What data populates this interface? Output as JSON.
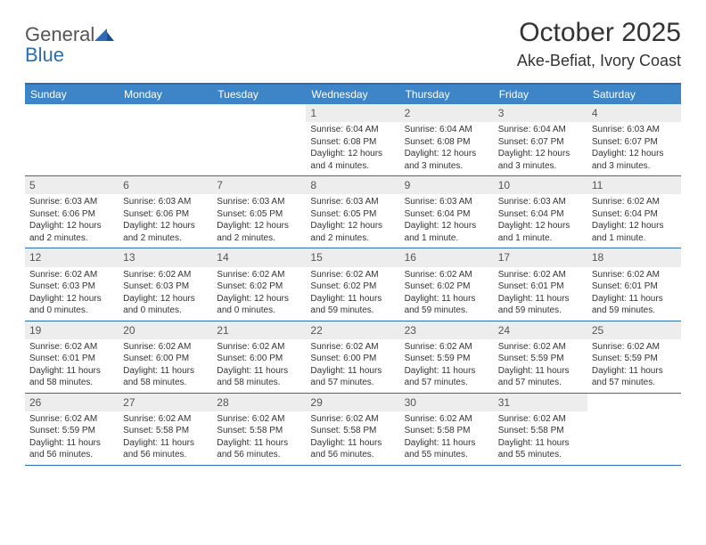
{
  "brand": {
    "word1": "General",
    "word2": "Blue"
  },
  "title": "October 2025",
  "location": "Ake-Befiat, Ivory Coast",
  "colors": {
    "header_bar": "#3d85c6",
    "rule": "#2a6db5",
    "daynum_bg": "#ededed",
    "text": "#333333",
    "background": "#ffffff"
  },
  "weekdays": [
    "Sunday",
    "Monday",
    "Tuesday",
    "Wednesday",
    "Thursday",
    "Friday",
    "Saturday"
  ],
  "weeks": [
    [
      null,
      null,
      null,
      {
        "n": "1",
        "sr": "Sunrise: 6:04 AM",
        "ss": "Sunset: 6:08 PM",
        "dl": "Daylight: 12 hours and 4 minutes."
      },
      {
        "n": "2",
        "sr": "Sunrise: 6:04 AM",
        "ss": "Sunset: 6:08 PM",
        "dl": "Daylight: 12 hours and 3 minutes."
      },
      {
        "n": "3",
        "sr": "Sunrise: 6:04 AM",
        "ss": "Sunset: 6:07 PM",
        "dl": "Daylight: 12 hours and 3 minutes."
      },
      {
        "n": "4",
        "sr": "Sunrise: 6:03 AM",
        "ss": "Sunset: 6:07 PM",
        "dl": "Daylight: 12 hours and 3 minutes."
      }
    ],
    [
      {
        "n": "5",
        "sr": "Sunrise: 6:03 AM",
        "ss": "Sunset: 6:06 PM",
        "dl": "Daylight: 12 hours and 2 minutes."
      },
      {
        "n": "6",
        "sr": "Sunrise: 6:03 AM",
        "ss": "Sunset: 6:06 PM",
        "dl": "Daylight: 12 hours and 2 minutes."
      },
      {
        "n": "7",
        "sr": "Sunrise: 6:03 AM",
        "ss": "Sunset: 6:05 PM",
        "dl": "Daylight: 12 hours and 2 minutes."
      },
      {
        "n": "8",
        "sr": "Sunrise: 6:03 AM",
        "ss": "Sunset: 6:05 PM",
        "dl": "Daylight: 12 hours and 2 minutes."
      },
      {
        "n": "9",
        "sr": "Sunrise: 6:03 AM",
        "ss": "Sunset: 6:04 PM",
        "dl": "Daylight: 12 hours and 1 minute."
      },
      {
        "n": "10",
        "sr": "Sunrise: 6:03 AM",
        "ss": "Sunset: 6:04 PM",
        "dl": "Daylight: 12 hours and 1 minute."
      },
      {
        "n": "11",
        "sr": "Sunrise: 6:02 AM",
        "ss": "Sunset: 6:04 PM",
        "dl": "Daylight: 12 hours and 1 minute."
      }
    ],
    [
      {
        "n": "12",
        "sr": "Sunrise: 6:02 AM",
        "ss": "Sunset: 6:03 PM",
        "dl": "Daylight: 12 hours and 0 minutes."
      },
      {
        "n": "13",
        "sr": "Sunrise: 6:02 AM",
        "ss": "Sunset: 6:03 PM",
        "dl": "Daylight: 12 hours and 0 minutes."
      },
      {
        "n": "14",
        "sr": "Sunrise: 6:02 AM",
        "ss": "Sunset: 6:02 PM",
        "dl": "Daylight: 12 hours and 0 minutes."
      },
      {
        "n": "15",
        "sr": "Sunrise: 6:02 AM",
        "ss": "Sunset: 6:02 PM",
        "dl": "Daylight: 11 hours and 59 minutes."
      },
      {
        "n": "16",
        "sr": "Sunrise: 6:02 AM",
        "ss": "Sunset: 6:02 PM",
        "dl": "Daylight: 11 hours and 59 minutes."
      },
      {
        "n": "17",
        "sr": "Sunrise: 6:02 AM",
        "ss": "Sunset: 6:01 PM",
        "dl": "Daylight: 11 hours and 59 minutes."
      },
      {
        "n": "18",
        "sr": "Sunrise: 6:02 AM",
        "ss": "Sunset: 6:01 PM",
        "dl": "Daylight: 11 hours and 59 minutes."
      }
    ],
    [
      {
        "n": "19",
        "sr": "Sunrise: 6:02 AM",
        "ss": "Sunset: 6:01 PM",
        "dl": "Daylight: 11 hours and 58 minutes."
      },
      {
        "n": "20",
        "sr": "Sunrise: 6:02 AM",
        "ss": "Sunset: 6:00 PM",
        "dl": "Daylight: 11 hours and 58 minutes."
      },
      {
        "n": "21",
        "sr": "Sunrise: 6:02 AM",
        "ss": "Sunset: 6:00 PM",
        "dl": "Daylight: 11 hours and 58 minutes."
      },
      {
        "n": "22",
        "sr": "Sunrise: 6:02 AM",
        "ss": "Sunset: 6:00 PM",
        "dl": "Daylight: 11 hours and 57 minutes."
      },
      {
        "n": "23",
        "sr": "Sunrise: 6:02 AM",
        "ss": "Sunset: 5:59 PM",
        "dl": "Daylight: 11 hours and 57 minutes."
      },
      {
        "n": "24",
        "sr": "Sunrise: 6:02 AM",
        "ss": "Sunset: 5:59 PM",
        "dl": "Daylight: 11 hours and 57 minutes."
      },
      {
        "n": "25",
        "sr": "Sunrise: 6:02 AM",
        "ss": "Sunset: 5:59 PM",
        "dl": "Daylight: 11 hours and 57 minutes."
      }
    ],
    [
      {
        "n": "26",
        "sr": "Sunrise: 6:02 AM",
        "ss": "Sunset: 5:59 PM",
        "dl": "Daylight: 11 hours and 56 minutes."
      },
      {
        "n": "27",
        "sr": "Sunrise: 6:02 AM",
        "ss": "Sunset: 5:58 PM",
        "dl": "Daylight: 11 hours and 56 minutes."
      },
      {
        "n": "28",
        "sr": "Sunrise: 6:02 AM",
        "ss": "Sunset: 5:58 PM",
        "dl": "Daylight: 11 hours and 56 minutes."
      },
      {
        "n": "29",
        "sr": "Sunrise: 6:02 AM",
        "ss": "Sunset: 5:58 PM",
        "dl": "Daylight: 11 hours and 56 minutes."
      },
      {
        "n": "30",
        "sr": "Sunrise: 6:02 AM",
        "ss": "Sunset: 5:58 PM",
        "dl": "Daylight: 11 hours and 55 minutes."
      },
      {
        "n": "31",
        "sr": "Sunrise: 6:02 AM",
        "ss": "Sunset: 5:58 PM",
        "dl": "Daylight: 11 hours and 55 minutes."
      },
      null
    ]
  ]
}
